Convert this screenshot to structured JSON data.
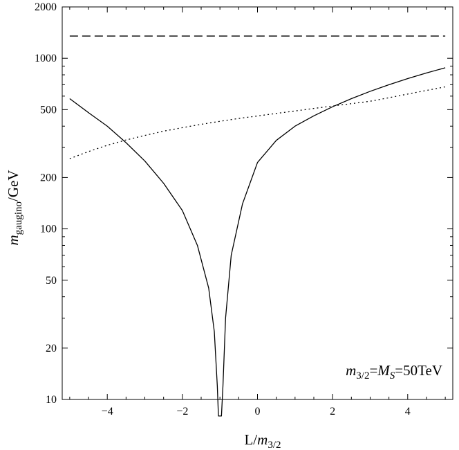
{
  "chart_data": {
    "type": "line",
    "xlabel_main": "L/",
    "xlabel_italic": "m",
    "xlabel_sub": "3/2",
    "ylabel_italic": "m",
    "ylabel_sub": "gaugino",
    "ylabel_rest": "/GeV",
    "xlim": [
      -5.2,
      5.2
    ],
    "ylim": [
      10,
      2000
    ],
    "yscale": "log",
    "grid": false,
    "x_ticks": [
      -4,
      -2,
      0,
      2,
      4
    ],
    "x_tick_labels": [
      "−4",
      "−2",
      "0",
      "2",
      "4"
    ],
    "y_ticks": [
      10,
      20,
      50,
      100,
      200,
      500,
      1000,
      2000
    ],
    "y_tick_labels": [
      "10",
      "20",
      "50",
      "100",
      "200",
      "500",
      "1000",
      "2000"
    ],
    "annotation": {
      "m": "m",
      "m_sub": "3/2",
      "eq1": "=",
      "M": "M",
      "M_sub": "S",
      "value": "=50TeV"
    },
    "series": [
      {
        "style": "solid",
        "x": [
          -5,
          -4.5,
          -4,
          -3.5,
          -3,
          -2.5,
          -2,
          -1.6,
          -1.3,
          -1.15,
          -1.07,
          -1.04,
          -0.96,
          -0.92,
          -0.85,
          -0.7,
          -0.4,
          0,
          0.5,
          1,
          1.5,
          2,
          2.5,
          3,
          3.5,
          4,
          4.5,
          5
        ],
        "y": [
          580,
          480,
          400,
          320,
          250,
          185,
          128,
          80,
          45,
          25,
          12,
          8,
          8,
          12,
          30,
          70,
          140,
          245,
          330,
          400,
          460,
          520,
          580,
          640,
          700,
          760,
          820,
          880
        ]
      },
      {
        "style": "dotted",
        "x": [
          -5,
          -4.5,
          -4,
          -3.5,
          -3,
          -2.5,
          -2,
          -1.5,
          -1,
          -0.5,
          0,
          0.5,
          1,
          1.5,
          2,
          2.5,
          3,
          3.5,
          4,
          4.5,
          5
        ],
        "y": [
          258,
          284,
          309,
          332,
          353,
          374,
          392,
          410,
          427,
          444,
          459,
          475,
          491,
          508,
          525,
          542,
          560,
          587,
          617,
          648,
          680
        ]
      },
      {
        "style": "dashed",
        "x": [
          -5,
          5
        ],
        "y": [
          1350,
          1350
        ]
      }
    ]
  }
}
